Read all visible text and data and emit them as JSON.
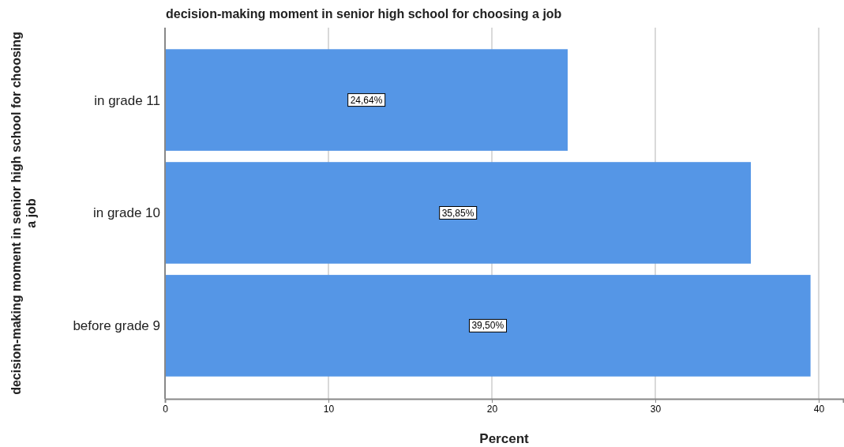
{
  "chart_data": {
    "type": "bar",
    "orientation": "horizontal",
    "title": "decision-making moment in senior high school for choosing a job",
    "xlabel": "Percent",
    "ylabel": "decision-making moment in senior high school for choosing a job",
    "categories": [
      "in grade 11",
      "in grade 10",
      "before grade 9"
    ],
    "values": [
      24.64,
      35.85,
      39.5
    ],
    "value_labels": [
      "24,64%",
      "35,85%",
      "39,50%"
    ],
    "color": "#5596e6",
    "xlim": [
      0,
      41.5
    ],
    "xticks": [
      0,
      10,
      20,
      30,
      40
    ],
    "grid": "x"
  }
}
